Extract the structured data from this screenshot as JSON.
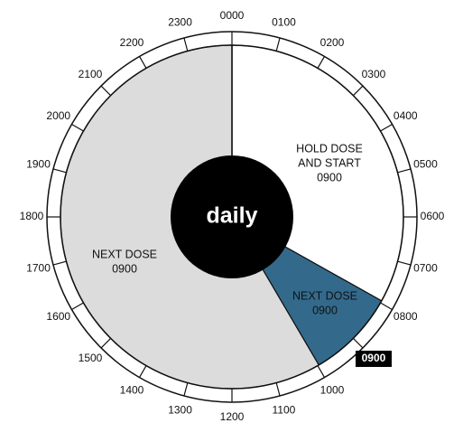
{
  "hours": [
    "0000",
    "0100",
    "0200",
    "0300",
    "0400",
    "0500",
    "0600",
    "0700",
    "0800",
    "0900",
    "1000",
    "1100",
    "1200",
    "1300",
    "1400",
    "1500",
    "1600",
    "1700",
    "1800",
    "1900",
    "2000",
    "2100",
    "2200",
    "2300"
  ],
  "center_label": "daily",
  "sectors": [
    {
      "lines": [
        "HOLD DOSE",
        "AND START",
        "0900"
      ]
    },
    {
      "lines": [
        "NEXT DOSE",
        "0900"
      ]
    },
    {
      "lines": [
        "NEXT DOSE",
        "0900"
      ]
    }
  ]
}
